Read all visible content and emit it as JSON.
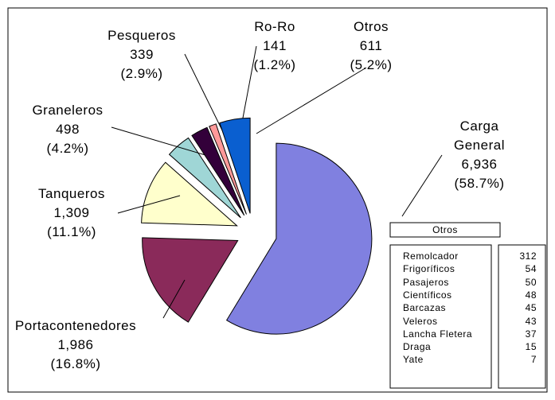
{
  "chart_data": {
    "type": "pie",
    "categories": [
      "Carga General",
      "Portacontenedores",
      "Tanqueros",
      "Graneleros",
      "Pesqueros",
      "Ro-Ro",
      "Otros"
    ],
    "values": [
      6936,
      1986,
      1309,
      498,
      339,
      141,
      611
    ],
    "value_labels": [
      "6,936",
      "1,986",
      "1,309",
      "498",
      "339",
      "141",
      "611"
    ],
    "percent_labels": [
      "(58.7%)",
      "(16.8%)",
      "(11.1%)",
      "(4.2%)",
      "(2.9%)",
      "(1.2%)",
      "(5.2%)"
    ],
    "colors": [
      "#8080e0",
      "#8a2a5a",
      "#ffffcc",
      "#9fd6d6",
      "#33003a",
      "#ff9999",
      "#0a5fd0"
    ]
  },
  "table": {
    "title": "Otros",
    "rows": [
      [
        "Remolcador",
        "312"
      ],
      [
        "Frigoríficos",
        "54"
      ],
      [
        "Pasajeros",
        "50"
      ],
      [
        "Científicos",
        "48"
      ],
      [
        "Barcazas",
        "45"
      ],
      [
        "Veleros",
        "43"
      ],
      [
        "Lancha Fletera",
        "37"
      ],
      [
        "Draga",
        "15"
      ],
      [
        "Yate",
        "7"
      ]
    ]
  }
}
